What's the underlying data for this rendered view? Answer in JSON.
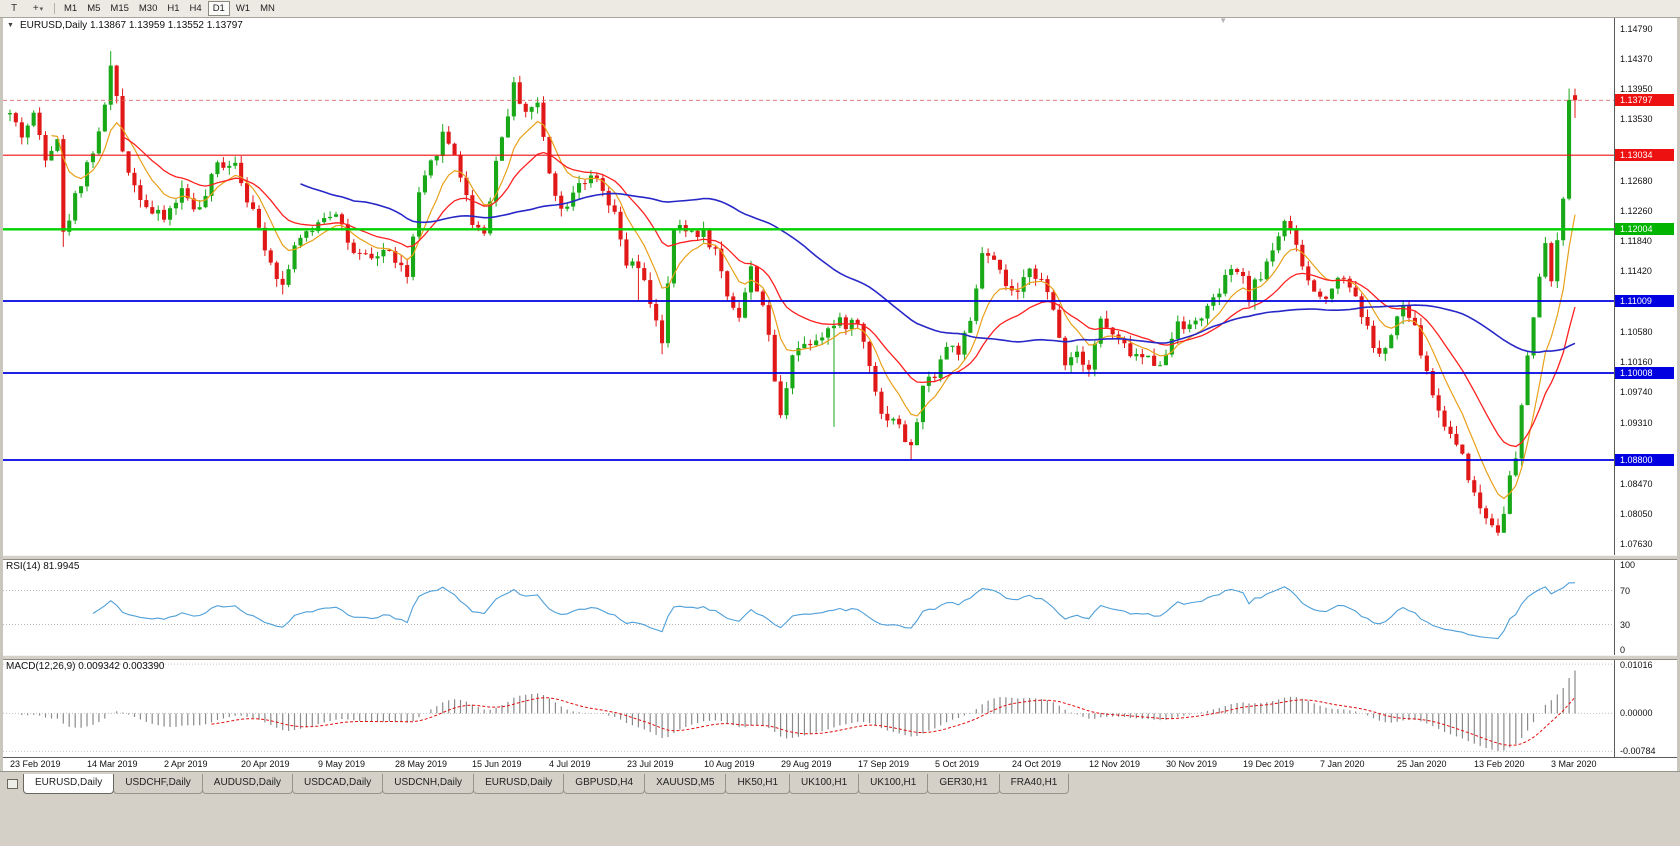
{
  "icons": {
    "one_click": "▼",
    "shift_marker": "▼",
    "text_tool": "T",
    "cursor_tool": "+",
    "cursor_dropdown": "▾"
  },
  "toolbar": {
    "timeframes": [
      {
        "label": "M1",
        "active": false
      },
      {
        "label": "M5",
        "active": false
      },
      {
        "label": "M15",
        "active": false
      },
      {
        "label": "M30",
        "active": false
      },
      {
        "label": "H1",
        "active": false
      },
      {
        "label": "H4",
        "active": false
      },
      {
        "label": "D1",
        "active": true
      },
      {
        "label": "W1",
        "active": false
      },
      {
        "label": "MN",
        "active": false
      }
    ]
  },
  "chart": {
    "title_line": "EURUSD,Daily 1.13867 1.13959 1.13552 1.13797",
    "symbol": "EURUSD",
    "period": "Daily",
    "open": "1.13867",
    "high": "1.13959",
    "low": "1.13552",
    "close": "1.13797",
    "axis_labels": [
      "1.14790",
      "1.14370",
      "1.13950",
      "1.13530",
      "1.12680",
      "1.12260",
      "1.11840",
      "1.11420",
      "1.10580",
      "1.10160",
      "1.09740",
      "1.09310",
      "1.08470",
      "1.08050",
      "1.07630"
    ],
    "badges": [
      {
        "text": "1.13797",
        "value": 1.13797,
        "color": "#ee1111",
        "name": "current-price-badge"
      },
      {
        "text": "1.13034",
        "value": 1.13034,
        "color": "#ee1111",
        "name": "resistance-line-badge"
      },
      {
        "text": "1.12004",
        "value": 1.12004,
        "color": "#00b400",
        "name": "green-level-badge"
      },
      {
        "text": "1.11009",
        "value": 1.11009,
        "color": "#0000e0",
        "name": "support-level-badge-1"
      },
      {
        "text": "1.10008",
        "value": 1.10008,
        "color": "#0000e0",
        "name": "support-level-badge-2"
      },
      {
        "text": "1.08800",
        "value": 1.088,
        "color": "#0000e0",
        "name": "support-level-badge-3"
      }
    ]
  },
  "rsi": {
    "label": "RSI(14) 81.9945",
    "value": "81.9945",
    "axis_labels": [
      {
        "text": "100",
        "value": 100
      },
      {
        "text": "70",
        "value": 70
      },
      {
        "text": "30",
        "value": 30
      },
      {
        "text": "0",
        "value": 0
      }
    ],
    "guides": [
      70,
      30
    ],
    "line_color": "#4f9fd8"
  },
  "macd": {
    "label": "MACD(12,26,9) 0.009342 0.003390",
    "macd_value": "0.009342",
    "signal_value": "0.003390",
    "axis_labels": [
      {
        "text": "0.01016",
        "value": 0.01016
      },
      {
        "text": "0.00000",
        "value": 0
      },
      {
        "text": "-0.00784",
        "value": -0.00784
      }
    ],
    "range": [
      -0.009,
      0.011
    ],
    "hist_color": "#8a8a8a",
    "signal_color": "#e01010"
  },
  "tabs": [
    {
      "label": "EURUSD,Daily",
      "active": true
    },
    {
      "label": "USDCHF,Daily",
      "active": false
    },
    {
      "label": "AUDUSD,Daily",
      "active": false
    },
    {
      "label": "USDCAD,Daily",
      "active": false
    },
    {
      "label": "USDCNH,Daily",
      "active": false
    },
    {
      "label": "EURUSD,Daily",
      "active": false
    },
    {
      "label": "GBPUSD,H4",
      "active": false
    },
    {
      "label": "XAUUSD,M5",
      "active": false
    },
    {
      "label": "HK50,H1",
      "active": false
    },
    {
      "label": "UK100,H1",
      "active": false
    },
    {
      "label": "UK100,H1",
      "active": false
    },
    {
      "label": "GER30,H1",
      "active": false
    },
    {
      "label": "FRA40,H1",
      "active": false
    }
  ],
  "chart_data": {
    "type": "candlestick",
    "symbol": "EURUSD",
    "timeframe": "Daily",
    "num_candles": 265,
    "price_axis_range": [
      1.0748,
      1.1494
    ],
    "last_candle": {
      "o": 1.13867,
      "h": 1.13959,
      "l": 1.13552,
      "c": 1.13797
    },
    "price_path_anchors": [
      [
        0,
        1.136
      ],
      [
        2,
        1.1332
      ],
      [
        4,
        1.1358
      ],
      [
        6,
        1.1305
      ],
      [
        8,
        1.133
      ],
      [
        9,
        1.1192
      ],
      [
        11,
        1.1245
      ],
      [
        13,
        1.1292
      ],
      [
        15,
        1.133
      ],
      [
        17,
        1.1425
      ],
      [
        18,
        1.1378
      ],
      [
        19,
        1.131
      ],
      [
        21,
        1.1262
      ],
      [
        24,
        1.1222
      ],
      [
        26,
        1.1215
      ],
      [
        29,
        1.1254
      ],
      [
        32,
        1.1226
      ],
      [
        35,
        1.129
      ],
      [
        38,
        1.1296
      ],
      [
        41,
        1.1222
      ],
      [
        44,
        1.1158
      ],
      [
        46,
        1.1122
      ],
      [
        48,
        1.118
      ],
      [
        51,
        1.1196
      ],
      [
        52,
        1.1215
      ],
      [
        55,
        1.1228
      ],
      [
        58,
        1.1162
      ],
      [
        61,
        1.1158
      ],
      [
        63,
        1.1172
      ],
      [
        65,
        1.116
      ],
      [
        67,
        1.1132
      ],
      [
        69,
        1.1245
      ],
      [
        71,
        1.129
      ],
      [
        73,
        1.1332
      ],
      [
        75,
        1.1308
      ],
      [
        78,
        1.1212
      ],
      [
        80,
        1.1196
      ],
      [
        82,
        1.1295
      ],
      [
        85,
        1.1398
      ],
      [
        87,
        1.1366
      ],
      [
        89,
        1.1372
      ],
      [
        91,
        1.1284
      ],
      [
        93,
        1.1226
      ],
      [
        96,
        1.127
      ],
      [
        99,
        1.1266
      ],
      [
        102,
        1.1216
      ],
      [
        104,
        1.1152
      ],
      [
        106,
        1.1146
      ],
      [
        109,
        1.1078
      ],
      [
        110,
        1.1038
      ],
      [
        112,
        1.12
      ],
      [
        115,
        1.1198
      ],
      [
        117,
        1.1196
      ],
      [
        119,
        1.117
      ],
      [
        121,
        1.111
      ],
      [
        123,
        1.1082
      ],
      [
        125,
        1.1144
      ],
      [
        127,
        1.1098
      ],
      [
        129,
        1.0992
      ],
      [
        130,
        1.0938
      ],
      [
        132,
        1.1032
      ],
      [
        135,
        1.1046
      ],
      [
        138,
        1.1062
      ],
      [
        140,
        1.107
      ],
      [
        143,
        1.107
      ],
      [
        145,
        1.1018
      ],
      [
        147,
        1.0942
      ],
      [
        149,
        1.094
      ],
      [
        152,
        1.0894
      ],
      [
        154,
        1.098
      ],
      [
        156,
        1.1002
      ],
      [
        158,
        1.1038
      ],
      [
        160,
        1.1032
      ],
      [
        162,
        1.1066
      ],
      [
        164,
        1.1168
      ],
      [
        166,
        1.1152
      ],
      [
        168,
        1.1122
      ],
      [
        170,
        1.1105
      ],
      [
        172,
        1.1152
      ],
      [
        174,
        1.1128
      ],
      [
        176,
        1.1086
      ],
      [
        178,
        1.1018
      ],
      [
        180,
        1.1032
      ],
      [
        182,
        1.101
      ],
      [
        184,
        1.1074
      ],
      [
        187,
        1.1042
      ],
      [
        190,
        1.1024
      ],
      [
        193,
        1.1018
      ],
      [
        195,
        1.1022
      ],
      [
        197,
        1.1078
      ],
      [
        199,
        1.1062
      ],
      [
        201,
        1.1082
      ],
      [
        203,
        1.1098
      ],
      [
        205,
        1.113
      ],
      [
        207,
        1.1146
      ],
      [
        209,
        1.1108
      ],
      [
        211,
        1.1136
      ],
      [
        213,
        1.1175
      ],
      [
        215,
        1.1213
      ],
      [
        217,
        1.1172
      ],
      [
        219,
        1.1128
      ],
      [
        221,
        1.1103
      ],
      [
        223,
        1.1122
      ],
      [
        225,
        1.1137
      ],
      [
        227,
        1.1108
      ],
      [
        229,
        1.106
      ],
      [
        231,
        1.1023
      ],
      [
        233,
        1.1052
      ],
      [
        235,
        1.1094
      ],
      [
        237,
        1.106
      ],
      [
        239,
        1.1
      ],
      [
        241,
        1.0946
      ],
      [
        243,
        1.0916
      ],
      [
        245,
        1.089
      ],
      [
        247,
        1.083
      ],
      [
        249,
        1.08
      ],
      [
        251,
        1.0786
      ],
      [
        252,
        1.0812
      ],
      [
        253,
        1.0854
      ],
      [
        254,
        1.088
      ],
      [
        255,
        1.095
      ],
      [
        256,
        1.1026
      ],
      [
        257,
        1.108
      ],
      [
        258,
        1.1135
      ],
      [
        259,
        1.1173
      ],
      [
        260,
        1.1135
      ],
      [
        261,
        1.118
      ],
      [
        262,
        1.1236
      ],
      [
        263,
        1.138
      ],
      [
        264,
        1.13797
      ]
    ],
    "forced_extremes": [
      {
        "i": 9,
        "l": 1.1176
      },
      {
        "i": 17,
        "h": 1.1448
      },
      {
        "i": 46,
        "l": 1.111
      },
      {
        "i": 85,
        "h": 1.1412
      },
      {
        "i": 106,
        "l": 1.1101
      },
      {
        "i": 110,
        "l": 1.1027
      },
      {
        "i": 139,
        "l": 1.0926
      },
      {
        "i": 152,
        "l": 1.0879
      },
      {
        "i": 251,
        "l": 1.0778
      },
      {
        "i": 263,
        "h": 1.1396
      }
    ],
    "noise": {
      "seed": 42,
      "close_jitter": 0.0009,
      "wick": 0.0011
    },
    "colors": {
      "bull": "#18a818",
      "bear": "#e01818",
      "current_price_line": "#e06868"
    },
    "moving_averages": [
      {
        "type": "ema",
        "period": 8,
        "color": "#e8a018",
        "width": 1.2
      },
      {
        "type": "ema",
        "period": 20,
        "color": "#ff2020",
        "width": 1.3
      },
      {
        "type": "sma",
        "period": 50,
        "color": "#2828c8",
        "width": 1.6
      }
    ],
    "horizontal_lines": [
      {
        "value": 1.13034,
        "color": "#ee1111",
        "width": 1.2
      },
      {
        "value": 1.12004,
        "color": "#00d000",
        "width": 2.4
      },
      {
        "value": 1.11009,
        "color": "#0000e0",
        "width": 1.8
      },
      {
        "value": 1.10008,
        "color": "#0000e0",
        "width": 1.8
      },
      {
        "value": 1.088,
        "color": "#0000e0",
        "width": 1.8
      }
    ],
    "indicators": {
      "rsi_period": 14,
      "macd_fast": 12,
      "macd_slow": 26,
      "macd_signal": 9
    },
    "date_labels": [
      {
        "text": "23 Feb 2019",
        "index": 0
      },
      {
        "text": "14 Mar 2019",
        "index": 13
      },
      {
        "text": "2 Apr 2019",
        "index": 26
      },
      {
        "text": "20 Apr 2019",
        "index": 39
      },
      {
        "text": "9 May 2019",
        "index": 52
      },
      {
        "text": "28 May 2019",
        "index": 65
      },
      {
        "text": "15 Jun 2019",
        "index": 78
      },
      {
        "text": "4 Jul 2019",
        "index": 91
      },
      {
        "text": "23 Jul 2019",
        "index": 104
      },
      {
        "text": "10 Aug 2019",
        "index": 117
      },
      {
        "text": "29 Aug 2019",
        "index": 130
      },
      {
        "text": "17 Sep 2019",
        "index": 143
      },
      {
        "text": "5 Oct 2019",
        "index": 156
      },
      {
        "text": "24 Oct 2019",
        "index": 169
      },
      {
        "text": "12 Nov 2019",
        "index": 182
      },
      {
        "text": "30 Nov 2019",
        "index": 195
      },
      {
        "text": "19 Dec 2019",
        "index": 208
      },
      {
        "text": "7 Jan 2020",
        "index": 221
      },
      {
        "text": "25 Jan 2020",
        "index": 234
      },
      {
        "text": "13 Feb 2020",
        "index": 247
      },
      {
        "text": "3 Mar 2020",
        "index": 260
      }
    ]
  }
}
